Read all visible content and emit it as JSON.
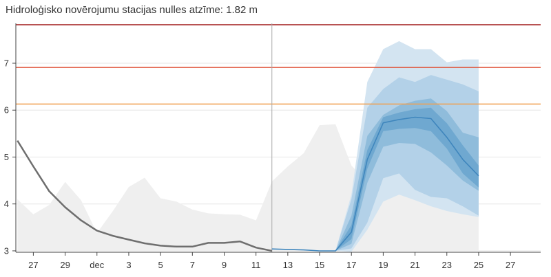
{
  "title": "Hidroloģisko novērojumu stacijas nulles atzīme: 1.82 m",
  "chart_data": {
    "type": "line",
    "title": "Hidroloģisko novērojumu stacijas nulles atzīme: 1.82 m",
    "xlabel": "",
    "ylabel": "",
    "x_ticks": [
      {
        "day": 27,
        "label": "27"
      },
      {
        "day": 29,
        "label": "29"
      },
      {
        "day": 31,
        "label": "dec"
      },
      {
        "day": 33,
        "label": "3"
      },
      {
        "day": 35,
        "label": "5"
      },
      {
        "day": 37,
        "label": "7"
      },
      {
        "day": 39,
        "label": "9"
      },
      {
        "day": 41,
        "label": "11"
      },
      {
        "day": 43,
        "label": "13"
      },
      {
        "day": 45,
        "label": "15"
      },
      {
        "day": 47,
        "label": "17"
      },
      {
        "day": 49,
        "label": "19"
      },
      {
        "day": 51,
        "label": "21"
      },
      {
        "day": 53,
        "label": "23"
      },
      {
        "day": 55,
        "label": "25"
      },
      {
        "day": 57,
        "label": "27"
      }
    ],
    "y_ticks": [
      3,
      4,
      5,
      6,
      7
    ],
    "xlim": [
      25.9,
      58.9
    ],
    "ylim": [
      2.97,
      7.85
    ],
    "today_marker_day": 42,
    "thresholds": [
      {
        "value": 7.82,
        "color": "#a01a1a"
      },
      {
        "value": 6.91,
        "color": "#e0533a"
      },
      {
        "value": 6.13,
        "color": "#f0a050"
      }
    ],
    "historical_range": [
      [
        26,
        3.0,
        4.1
      ],
      [
        27,
        3.0,
        3.78
      ],
      [
        28,
        3.0,
        3.98
      ],
      [
        29,
        3.0,
        4.47
      ],
      [
        30,
        3.0,
        4.08
      ],
      [
        31,
        3.0,
        3.38
      ],
      [
        32,
        3.0,
        3.85
      ],
      [
        33,
        3.0,
        4.36
      ],
      [
        34,
        3.0,
        4.56
      ],
      [
        35,
        3.0,
        4.12
      ],
      [
        36,
        3.0,
        4.05
      ],
      [
        37,
        3.0,
        3.88
      ],
      [
        38,
        3.0,
        3.8
      ],
      [
        39,
        3.0,
        3.78
      ],
      [
        40,
        3.0,
        3.77
      ],
      [
        41,
        3.0,
        3.65
      ],
      [
        42,
        3.0,
        4.48
      ],
      [
        43,
        3.0,
        4.8
      ],
      [
        44,
        3.0,
        5.08
      ],
      [
        45,
        3.0,
        5.68
      ],
      [
        46,
        3.0,
        5.7
      ],
      [
        47,
        3.0,
        4.82
      ],
      [
        48,
        3.0,
        4.45
      ],
      [
        49,
        3.0,
        4.48
      ],
      [
        50,
        3.0,
        4.4
      ],
      [
        51,
        3.0,
        4.12
      ],
      [
        52,
        3.0,
        3.98
      ],
      [
        53,
        3.0,
        4.0
      ],
      [
        54,
        3.0,
        4.1
      ],
      [
        55,
        3.0,
        4.22
      ]
    ],
    "observed": [
      [
        26,
        5.35
      ],
      [
        27,
        4.8
      ],
      [
        28,
        4.27
      ],
      [
        29,
        3.93
      ],
      [
        30,
        3.65
      ],
      [
        31,
        3.43
      ],
      [
        32,
        3.32
      ],
      [
        33,
        3.24
      ],
      [
        34,
        3.16
      ],
      [
        35,
        3.11
      ],
      [
        36,
        3.09
      ],
      [
        37,
        3.09
      ],
      [
        38,
        3.17
      ],
      [
        39,
        3.17
      ],
      [
        40,
        3.2
      ],
      [
        41,
        3.07
      ],
      [
        42,
        3.0
      ]
    ],
    "forecast_median": [
      [
        42,
        3.04
      ],
      [
        43,
        3.03
      ],
      [
        44,
        3.02
      ],
      [
        45,
        3.0
      ],
      [
        46,
        3.0
      ],
      [
        47,
        3.4
      ],
      [
        48,
        4.95
      ],
      [
        49,
        5.73
      ],
      [
        50,
        5.8
      ],
      [
        51,
        5.85
      ],
      [
        52,
        5.82
      ],
      [
        53,
        5.42
      ],
      [
        54,
        4.95
      ],
      [
        55,
        4.6
      ]
    ],
    "forecast_bands": [
      {
        "band": "outer",
        "color": "#d3e4f1",
        "points": [
          [
            46,
            3.0,
            3.0
          ],
          [
            47,
            2.98,
            4.2
          ],
          [
            48,
            3.45,
            6.6
          ],
          [
            49,
            4.05,
            7.3
          ],
          [
            50,
            4.2,
            7.47
          ],
          [
            51,
            4.08,
            7.3
          ],
          [
            52,
            3.95,
            7.3
          ],
          [
            53,
            3.85,
            7.02
          ],
          [
            54,
            3.78,
            7.08
          ],
          [
            55,
            3.72,
            7.08
          ]
        ]
      },
      {
        "band": "middle",
        "color": "#b3d1e8",
        "points": [
          [
            46,
            3.0,
            3.0
          ],
          [
            47,
            3.05,
            4.1
          ],
          [
            48,
            3.6,
            6.05
          ],
          [
            49,
            4.55,
            6.45
          ],
          [
            50,
            4.65,
            6.7
          ],
          [
            51,
            4.3,
            6.6
          ],
          [
            52,
            4.15,
            6.75
          ],
          [
            53,
            4.12,
            6.65
          ],
          [
            54,
            3.95,
            6.55
          ],
          [
            55,
            3.75,
            6.4
          ]
        ]
      },
      {
        "band": "inner",
        "color": "#8fbcdb",
        "points": [
          [
            46,
            3.0,
            3.0
          ],
          [
            47,
            3.15,
            3.75
          ],
          [
            48,
            4.45,
            5.45
          ],
          [
            49,
            5.22,
            5.9
          ],
          [
            50,
            5.3,
            6.1
          ],
          [
            51,
            5.28,
            6.2
          ],
          [
            52,
            5.1,
            6.25
          ],
          [
            53,
            4.82,
            5.98
          ],
          [
            54,
            4.5,
            5.52
          ],
          [
            55,
            4.28,
            5.42
          ]
        ]
      },
      {
        "band": "core",
        "color": "#6fa8d0",
        "points": [
          [
            46,
            3.0,
            3.0
          ],
          [
            47,
            3.25,
            3.55
          ],
          [
            48,
            4.75,
            5.15
          ],
          [
            49,
            5.55,
            5.85
          ],
          [
            50,
            5.6,
            5.95
          ],
          [
            51,
            5.62,
            6.02
          ],
          [
            52,
            5.55,
            6.05
          ],
          [
            53,
            5.18,
            5.72
          ],
          [
            54,
            4.65,
            5.25
          ],
          [
            55,
            4.35,
            4.82
          ]
        ]
      }
    ],
    "colors": {
      "observed_line": "#6e6e6e",
      "forecast_line": "#3f86bd",
      "historical_fill": "#efefef",
      "grid": "#e6e6e6",
      "today_marker": "#aaaaaa"
    }
  }
}
